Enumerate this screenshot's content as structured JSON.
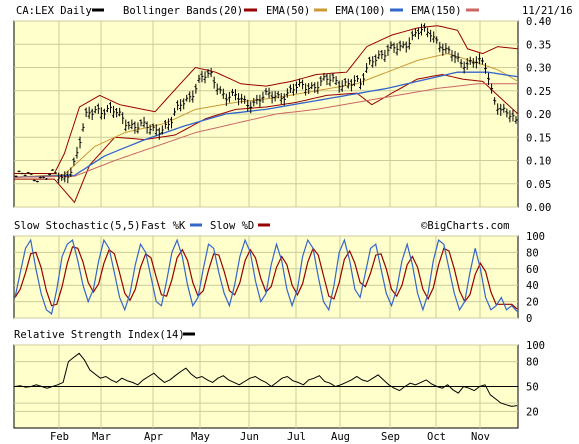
{
  "chart_data": [
    {
      "type": "ohlc",
      "title": "CA:LEX Daily",
      "date_label": "11/21/16",
      "legend": [
        {
          "label": "Bollinger Bands(20)",
          "color": "#990000"
        },
        {
          "label": "EMA(50)",
          "color": "#cc9933"
        },
        {
          "label": "EMA(100)",
          "color": "#3366cc"
        },
        {
          "label": "EMA(150)",
          "color": "#cc6666"
        }
      ],
      "ylim": [
        0,
        0.4
      ],
      "y_ticks": [
        "0.40",
        "0.35",
        "0.30",
        "0.25",
        "0.20",
        "0.15",
        "0.10",
        "0.05",
        "0.00"
      ],
      "grid": true,
      "x_labels": [
        "Feb",
        "Mar",
        "Apr",
        "May",
        "Jun",
        "Jul",
        "Aug",
        "Sep",
        "Oct",
        "Nov"
      ],
      "price_anchors": [
        [
          0,
          0.066
        ],
        [
          0.08,
          0.066
        ],
        [
          0.095,
          0.06
        ],
        [
          0.12,
          0.105
        ],
        [
          0.14,
          0.19
        ],
        [
          0.16,
          0.215
        ],
        [
          0.19,
          0.205
        ],
        [
          0.23,
          0.18
        ],
        [
          0.27,
          0.165
        ],
        [
          0.31,
          0.18
        ],
        [
          0.33,
          0.22
        ],
        [
          0.35,
          0.245
        ],
        [
          0.37,
          0.275
        ],
        [
          0.39,
          0.28
        ],
        [
          0.42,
          0.24
        ],
        [
          0.46,
          0.225
        ],
        [
          0.5,
          0.235
        ],
        [
          0.54,
          0.245
        ],
        [
          0.58,
          0.26
        ],
        [
          0.62,
          0.27
        ],
        [
          0.66,
          0.27
        ],
        [
          0.69,
          0.26
        ],
        [
          0.71,
          0.325
        ],
        [
          0.74,
          0.325
        ],
        [
          0.76,
          0.345
        ],
        [
          0.79,
          0.36
        ],
        [
          0.81,
          0.375
        ],
        [
          0.83,
          0.38
        ],
        [
          0.86,
          0.33
        ],
        [
          0.89,
          0.315
        ],
        [
          0.92,
          0.31
        ],
        [
          0.94,
          0.3
        ],
        [
          0.955,
          0.24
        ],
        [
          0.97,
          0.21
        ],
        [
          1.0,
          0.18
        ]
      ],
      "bb_upper_anchors": [
        [
          0,
          0.072
        ],
        [
          0.08,
          0.072
        ],
        [
          0.1,
          0.115
        ],
        [
          0.13,
          0.215
        ],
        [
          0.17,
          0.24
        ],
        [
          0.21,
          0.22
        ],
        [
          0.28,
          0.205
        ],
        [
          0.33,
          0.265
        ],
        [
          0.36,
          0.3
        ],
        [
          0.4,
          0.29
        ],
        [
          0.45,
          0.265
        ],
        [
          0.5,
          0.26
        ],
        [
          0.55,
          0.27
        ],
        [
          0.6,
          0.285
        ],
        [
          0.66,
          0.29
        ],
        [
          0.7,
          0.345
        ],
        [
          0.75,
          0.37
        ],
        [
          0.8,
          0.385
        ],
        [
          0.84,
          0.39
        ],
        [
          0.88,
          0.38
        ],
        [
          0.9,
          0.34
        ],
        [
          0.93,
          0.33
        ],
        [
          0.96,
          0.345
        ],
        [
          1.0,
          0.34
        ]
      ],
      "bb_lower_anchors": [
        [
          0,
          0.06
        ],
        [
          0.08,
          0.06
        ],
        [
          0.12,
          0.01
        ],
        [
          0.15,
          0.09
        ],
        [
          0.2,
          0.15
        ],
        [
          0.26,
          0.145
        ],
        [
          0.32,
          0.155
        ],
        [
          0.38,
          0.19
        ],
        [
          0.44,
          0.21
        ],
        [
          0.5,
          0.215
        ],
        [
          0.56,
          0.225
        ],
        [
          0.62,
          0.24
        ],
        [
          0.68,
          0.245
        ],
        [
          0.71,
          0.22
        ],
        [
          0.75,
          0.245
        ],
        [
          0.8,
          0.275
        ],
        [
          0.85,
          0.285
        ],
        [
          0.89,
          0.275
        ],
        [
          0.93,
          0.27
        ],
        [
          0.96,
          0.24
        ],
        [
          1.0,
          0.2
        ]
      ],
      "ema50_anchors": [
        [
          0,
          0.064
        ],
        [
          0.1,
          0.07
        ],
        [
          0.16,
          0.13
        ],
        [
          0.22,
          0.16
        ],
        [
          0.3,
          0.18
        ],
        [
          0.36,
          0.21
        ],
        [
          0.44,
          0.225
        ],
        [
          0.52,
          0.235
        ],
        [
          0.6,
          0.25
        ],
        [
          0.68,
          0.265
        ],
        [
          0.74,
          0.29
        ],
        [
          0.8,
          0.315
        ],
        [
          0.86,
          0.33
        ],
        [
          0.92,
          0.31
        ],
        [
          0.96,
          0.295
        ],
        [
          1.0,
          0.27
        ]
      ],
      "ema100_anchors": [
        [
          0,
          0.064
        ],
        [
          0.12,
          0.068
        ],
        [
          0.18,
          0.11
        ],
        [
          0.26,
          0.145
        ],
        [
          0.34,
          0.175
        ],
        [
          0.42,
          0.2
        ],
        [
          0.5,
          0.21
        ],
        [
          0.58,
          0.225
        ],
        [
          0.66,
          0.24
        ],
        [
          0.74,
          0.255
        ],
        [
          0.82,
          0.275
        ],
        [
          0.88,
          0.29
        ],
        [
          0.94,
          0.29
        ],
        [
          1.0,
          0.28
        ]
      ],
      "ema150_anchors": [
        [
          0,
          0.064
        ],
        [
          0.12,
          0.066
        ],
        [
          0.2,
          0.1
        ],
        [
          0.28,
          0.13
        ],
        [
          0.36,
          0.16
        ],
        [
          0.44,
          0.18
        ],
        [
          0.52,
          0.2
        ],
        [
          0.6,
          0.21
        ],
        [
          0.68,
          0.225
        ],
        [
          0.76,
          0.24
        ],
        [
          0.84,
          0.255
        ],
        [
          0.92,
          0.265
        ],
        [
          1.0,
          0.265
        ]
      ]
    },
    {
      "type": "line",
      "title": "Slow Stochastic(5,5)",
      "legend": [
        {
          "label": "Fast %K",
          "color": "#3366cc"
        },
        {
          "label": "Slow %D",
          "color": "#990000"
        }
      ],
      "watermark": "©BigCharts.com",
      "ylim": [
        0,
        100
      ],
      "y_ticks": [
        "100",
        "80",
        "60",
        "40",
        "20",
        "0"
      ],
      "grid": true,
      "k_values": [
        25,
        55,
        85,
        95,
        60,
        30,
        10,
        5,
        35,
        75,
        90,
        95,
        70,
        40,
        20,
        35,
        70,
        95,
        85,
        55,
        25,
        10,
        30,
        65,
        90,
        80,
        50,
        20,
        15,
        45,
        80,
        95,
        75,
        40,
        15,
        25,
        60,
        90,
        85,
        55,
        30,
        15,
        40,
        75,
        95,
        80,
        45,
        20,
        30,
        65,
        90,
        70,
        35,
        15,
        35,
        75,
        95,
        85,
        50,
        20,
        10,
        40,
        80,
        95,
        70,
        35,
        25,
        55,
        85,
        90,
        60,
        30,
        15,
        35,
        70,
        90,
        65,
        30,
        10,
        30,
        70,
        95,
        90,
        60,
        30,
        10,
        20,
        55,
        85,
        60,
        25,
        10,
        15,
        25,
        10,
        15,
        8
      ]
    },
    {
      "type": "line",
      "title": "Relative Strength Index(14)",
      "legend": [
        {
          "label": "",
          "color": "#000000"
        }
      ],
      "ylim": [
        0,
        100
      ],
      "y_ticks": [
        "100",
        "80",
        "50",
        "20"
      ],
      "extra_tick": "30",
      "rsi_values": [
        50,
        51,
        49,
        50,
        52,
        50,
        48,
        50,
        52,
        55,
        80,
        85,
        90,
        82,
        70,
        65,
        60,
        62,
        58,
        55,
        60,
        57,
        55,
        52,
        58,
        62,
        66,
        60,
        55,
        58,
        63,
        68,
        72,
        65,
        60,
        62,
        58,
        55,
        60,
        63,
        58,
        55,
        52,
        56,
        60,
        62,
        58,
        55,
        50,
        55,
        60,
        62,
        57,
        55,
        52,
        58,
        60,
        63,
        56,
        54,
        50,
        52,
        55,
        58,
        62,
        58,
        56,
        60,
        64,
        58,
        52,
        48,
        45,
        50,
        54,
        52,
        55,
        58,
        53,
        50,
        48,
        52,
        46,
        42,
        50,
        48,
        45,
        50,
        52,
        40,
        35,
        30,
        28,
        26,
        27
      ]
    }
  ]
}
